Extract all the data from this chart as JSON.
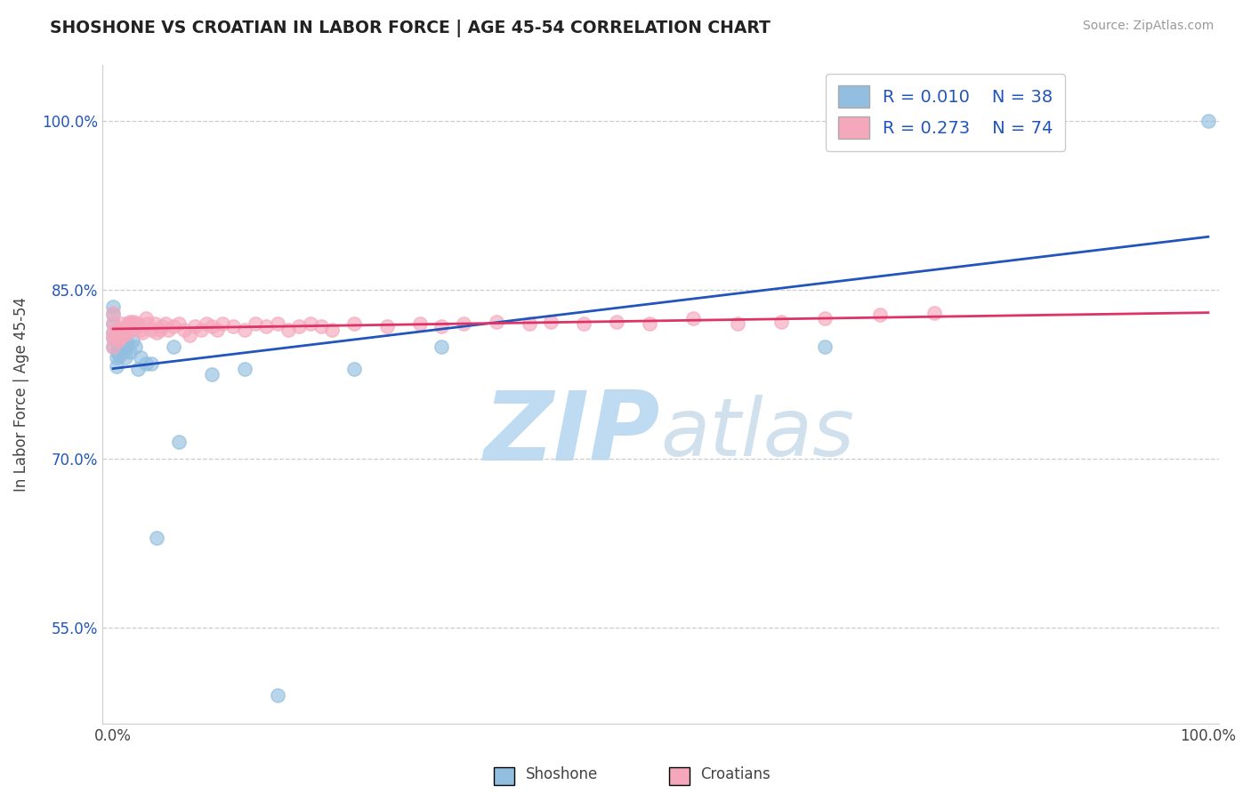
{
  "title": "SHOSHONE VS CROATIAN IN LABOR FORCE | AGE 45-54 CORRELATION CHART",
  "source": "Source: ZipAtlas.com",
  "ylabel": "In Labor Force | Age 45-54",
  "xlim": [
    -0.01,
    1.01
  ],
  "ylim": [
    0.465,
    1.05
  ],
  "ytick_positions": [
    0.55,
    0.7,
    0.85,
    1.0
  ],
  "yticklabels": [
    "55.0%",
    "70.0%",
    "85.0%",
    "100.0%"
  ],
  "xtick_positions": [
    0.0,
    1.0
  ],
  "xticklabels": [
    "0.0%",
    "100.0%"
  ],
  "legend_R_shoshone": "R = 0.010",
  "legend_N_shoshone": "N = 38",
  "legend_R_croatian": "R = 0.273",
  "legend_N_croatian": "N = 74",
  "shoshone_color": "#92bfdf",
  "croatian_color": "#f5a8bc",
  "shoshone_line_color": "#2255bb",
  "croatian_line_color": "#dd3366",
  "watermark_text": "ZIPatlas",
  "watermark_color": "#ddeef8",
  "grid_color": "#cccccc",
  "bottom_label_shoshone": "Shoshone",
  "bottom_label_croatian": "Croatians",
  "shoshone_x": [
    0.0,
    0.0,
    0.0,
    0.0,
    0.0,
    0.0,
    0.003,
    0.003,
    0.004,
    0.005,
    0.006,
    0.006,
    0.007,
    0.008,
    0.009,
    0.01,
    0.01,
    0.011,
    0.012,
    0.013,
    0.015,
    0.016,
    0.018,
    0.02,
    0.023,
    0.025,
    0.03,
    0.035,
    0.04,
    0.055,
    0.06,
    0.09,
    0.12,
    0.15,
    0.22,
    0.3,
    0.65,
    1.0
  ],
  "shoshone_y": [
    0.8,
    0.808,
    0.812,
    0.82,
    0.828,
    0.835,
    0.782,
    0.79,
    0.795,
    0.8,
    0.792,
    0.81,
    0.8,
    0.805,
    0.81,
    0.795,
    0.8,
    0.79,
    0.8,
    0.803,
    0.795,
    0.815,
    0.805,
    0.8,
    0.78,
    0.79,
    0.785,
    0.785,
    0.63,
    0.8,
    0.715,
    0.775,
    0.78,
    0.49,
    0.78,
    0.8,
    0.8,
    1.0
  ],
  "croatian_x": [
    0.0,
    0.0,
    0.0,
    0.0,
    0.0,
    0.003,
    0.004,
    0.005,
    0.006,
    0.007,
    0.008,
    0.009,
    0.01,
    0.011,
    0.012,
    0.013,
    0.014,
    0.015,
    0.016,
    0.017,
    0.018,
    0.019,
    0.02,
    0.021,
    0.022,
    0.023,
    0.025,
    0.027,
    0.03,
    0.032,
    0.035,
    0.038,
    0.04,
    0.043,
    0.045,
    0.048,
    0.05,
    0.055,
    0.06,
    0.065,
    0.07,
    0.075,
    0.08,
    0.085,
    0.09,
    0.095,
    0.1,
    0.11,
    0.12,
    0.13,
    0.14,
    0.15,
    0.16,
    0.17,
    0.18,
    0.19,
    0.2,
    0.22,
    0.25,
    0.28,
    0.3,
    0.32,
    0.35,
    0.38,
    0.4,
    0.43,
    0.46,
    0.49,
    0.53,
    0.57,
    0.61,
    0.65,
    0.7,
    0.75
  ],
  "croatian_y": [
    0.8,
    0.808,
    0.812,
    0.82,
    0.83,
    0.81,
    0.815,
    0.805,
    0.808,
    0.812,
    0.815,
    0.82,
    0.81,
    0.815,
    0.818,
    0.812,
    0.82,
    0.822,
    0.815,
    0.82,
    0.818,
    0.822,
    0.816,
    0.82,
    0.818,
    0.82,
    0.815,
    0.812,
    0.825,
    0.82,
    0.815,
    0.82,
    0.812,
    0.815,
    0.818,
    0.82,
    0.815,
    0.818,
    0.82,
    0.815,
    0.81,
    0.818,
    0.815,
    0.82,
    0.818,
    0.815,
    0.82,
    0.818,
    0.815,
    0.82,
    0.818,
    0.82,
    0.815,
    0.818,
    0.82,
    0.818,
    0.815,
    0.82,
    0.818,
    0.82,
    0.818,
    0.82,
    0.822,
    0.82,
    0.822,
    0.82,
    0.822,
    0.82,
    0.825,
    0.82,
    0.822,
    0.825,
    0.828,
    0.83
  ]
}
